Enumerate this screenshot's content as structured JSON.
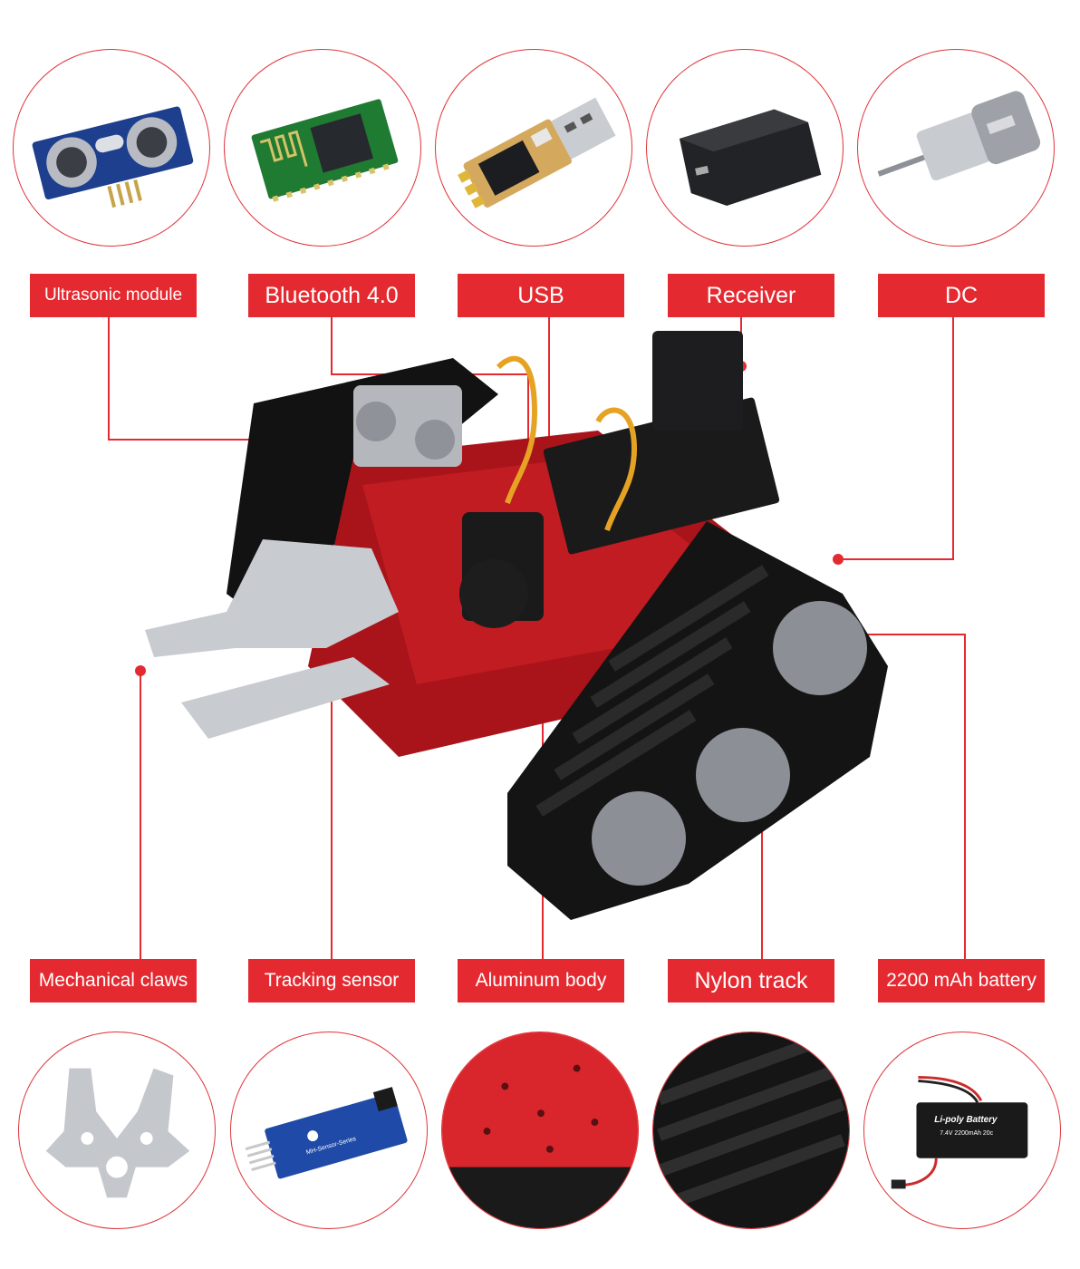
{
  "top_labels": [
    {
      "name": "ultrasonic-module-label",
      "text": "Ultrasonic module"
    },
    {
      "name": "bluetooth-label",
      "text": "Bluetooth 4.0"
    },
    {
      "name": "usb-label",
      "text": "USB"
    },
    {
      "name": "receiver-label",
      "text": "Receiver"
    },
    {
      "name": "dc-label",
      "text": "DC"
    }
  ],
  "bottom_labels": [
    {
      "name": "mechanical-claws-label",
      "text": "Mechanical claws"
    },
    {
      "name": "tracking-sensor-label",
      "text": "Tracking sensor"
    },
    {
      "name": "aluminum-body-label",
      "text": "Aluminum body"
    },
    {
      "name": "nylon-track-label",
      "text": "Nylon track"
    },
    {
      "name": "battery-label",
      "text": "2200 mAh battery"
    }
  ],
  "product_photos": {
    "tracking_sensor_board_text": "MH-Sensor-Series",
    "battery_title": "Li-poly Battery",
    "battery_spec": "7.4V 2200mAh 20c"
  },
  "colors": {
    "accent": "#e42a30",
    "chassis": "#b5161c",
    "track": "#141414"
  }
}
